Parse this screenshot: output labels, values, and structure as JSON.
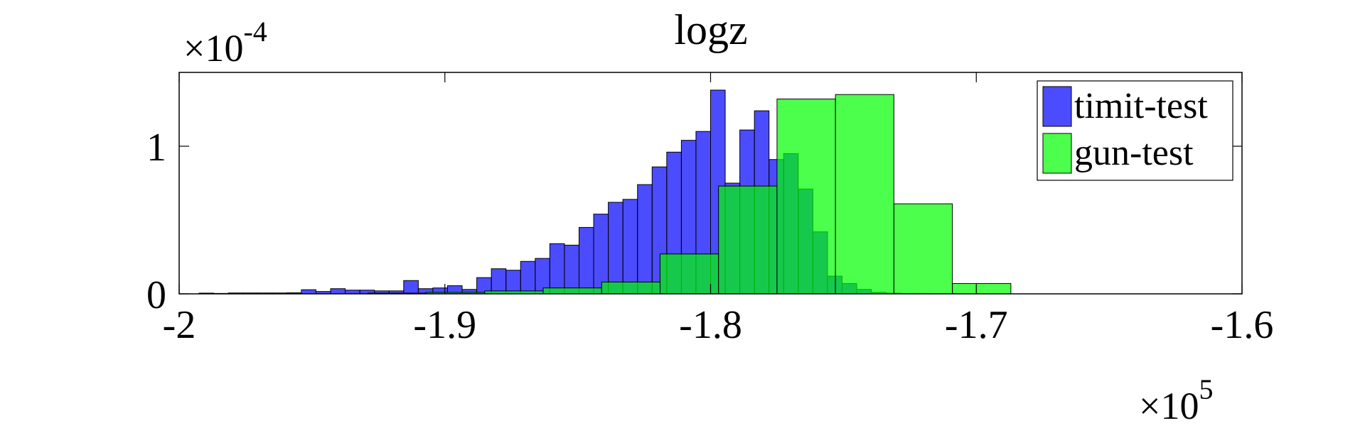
{
  "chart_data": {
    "type": "bar",
    "title": "logz",
    "xlabel": "",
    "ylabel": "",
    "x_multiplier": "×10",
    "x_multiplier_exponent": "5",
    "y_multiplier": "×10",
    "y_multiplier_exponent": "-4",
    "xlim": [
      -2.0,
      -1.6
    ],
    "ylim": [
      0,
      1.5
    ],
    "xticks": [
      -2.0,
      -1.9,
      -1.8,
      -1.7,
      -1.6
    ],
    "xtick_labels": [
      "-2",
      "-1.9",
      "-1.8",
      "-1.7",
      "-1.6"
    ],
    "yticks": [
      0,
      1
    ],
    "ytick_labels": [
      "0",
      "1"
    ],
    "grid": false,
    "legend_position": "top-right",
    "series": [
      {
        "name": "timit-test",
        "color": "#0000ff",
        "bin_width": 0.0055,
        "bin_starts": [
          -1.9925,
          -1.987,
          -1.9815,
          -1.976,
          -1.9705,
          -1.965,
          -1.9595,
          -1.954,
          -1.9485,
          -1.943,
          -1.9375,
          -1.932,
          -1.9265,
          -1.921,
          -1.9155,
          -1.91,
          -1.9045,
          -1.899,
          -1.8935,
          -1.888,
          -1.8825,
          -1.877,
          -1.8715,
          -1.866,
          -1.8605,
          -1.855,
          -1.8495,
          -1.844,
          -1.8385,
          -1.833,
          -1.8275,
          -1.822,
          -1.8165,
          -1.811,
          -1.8055,
          -1.8,
          -1.7945,
          -1.789,
          -1.7835,
          -1.778,
          -1.7725,
          -1.767,
          -1.7615,
          -1.756,
          -1.7505,
          -1.745,
          -1.7395,
          -1.734,
          -1.7285,
          -1.723,
          -1.7175,
          -1.712
        ],
        "values": [
          0.005,
          0.003,
          0.006,
          0.006,
          0.006,
          0.006,
          0.007,
          0.028,
          0.016,
          0.035,
          0.025,
          0.025,
          0.02,
          0.02,
          0.09,
          0.035,
          0.04,
          0.055,
          0.03,
          0.11,
          0.17,
          0.16,
          0.22,
          0.24,
          0.34,
          0.33,
          0.45,
          0.54,
          0.62,
          0.64,
          0.74,
          0.86,
          0.96,
          1.04,
          1.1,
          1.38,
          0.75,
          1.11,
          1.24,
          0.91,
          0.95,
          0.71,
          0.42,
          0.12,
          0.07,
          0.03,
          0.01,
          0.005,
          0.003,
          0.003,
          0.002,
          0.002
        ]
      },
      {
        "name": "gun-test",
        "color": "#00ff00",
        "bin_width": 0.022,
        "bin_starts": [
          -1.929,
          -1.907,
          -1.885,
          -1.863,
          -1.841,
          -1.819,
          -1.797,
          -1.775,
          -1.753,
          -1.731,
          -1.709
        ],
        "values": [
          0.005,
          0.01,
          0.02,
          0.04,
          0.08,
          0.27,
          0.73,
          1.32,
          1.35,
          0.61,
          0.07
        ]
      }
    ]
  }
}
